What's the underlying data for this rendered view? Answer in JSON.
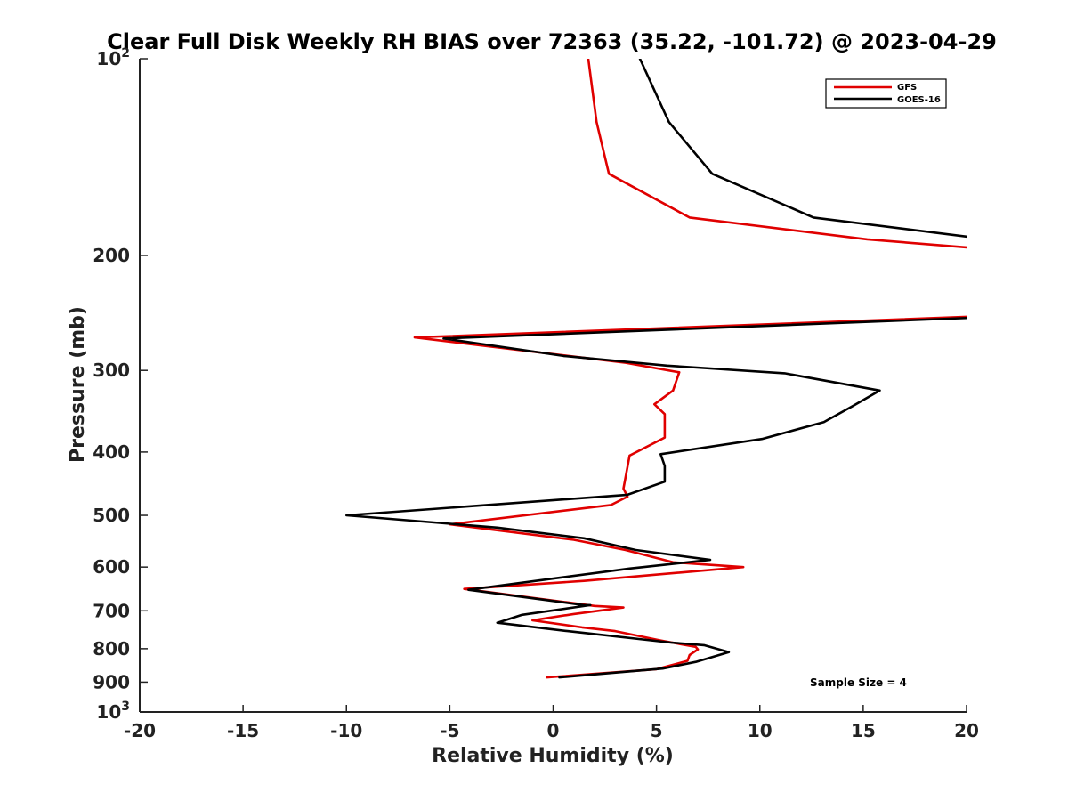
{
  "chart_data": {
    "type": "line",
    "title": "Clear Full Disk Weekly RH BIAS over 72363 (35.22, -101.72) @ 2023-04-29",
    "xlabel": "Relative Humidity (%)",
    "ylabel": "Pressure (mb)",
    "xlim": [
      -20,
      20
    ],
    "ylim": [
      100,
      1000
    ],
    "yscale": "log",
    "y_reversed": true,
    "x_ticks": [
      -20,
      -15,
      -10,
      -5,
      0,
      5,
      10,
      15,
      20
    ],
    "x_tick_labels": [
      "-20",
      "-15",
      "-10",
      "-5",
      "0",
      "5",
      "10",
      "15",
      "20"
    ],
    "y_ticks": [
      {
        "value": 100,
        "label": "10",
        "sup": "2"
      },
      {
        "value": 200,
        "label": "200",
        "sup": ""
      },
      {
        "value": 300,
        "label": "300",
        "sup": ""
      },
      {
        "value": 400,
        "label": "400",
        "sup": ""
      },
      {
        "value": 500,
        "label": "500",
        "sup": ""
      },
      {
        "value": 600,
        "label": "600",
        "sup": ""
      },
      {
        "value": 700,
        "label": "700",
        "sup": ""
      },
      {
        "value": 800,
        "label": "800",
        "sup": ""
      },
      {
        "value": 900,
        "label": "900",
        "sup": ""
      },
      {
        "value": 1000,
        "label": "10",
        "sup": "3"
      }
    ],
    "grid": false,
    "legend_position": "top-right",
    "series": [
      {
        "name": "GFS",
        "color": "#e00000",
        "points": [
          [
            1.7,
            100
          ],
          [
            2.1,
            125
          ],
          [
            2.7,
            150
          ],
          [
            6.6,
            175
          ],
          [
            15.2,
            189
          ],
          [
            20.5,
            195
          ],
          [
            20.5,
            248
          ],
          [
            -6.7,
            267
          ],
          [
            3.5,
            292
          ],
          [
            6.1,
            302
          ],
          [
            5.8,
            322
          ],
          [
            4.9,
            338
          ],
          [
            5.4,
            350
          ],
          [
            5.4,
            380
          ],
          [
            3.7,
            405
          ],
          [
            3.4,
            455
          ],
          [
            3.6,
            468
          ],
          [
            2.8,
            482
          ],
          [
            -5.0,
            516
          ],
          [
            1.0,
            545
          ],
          [
            3.5,
            565
          ],
          [
            5.8,
            590
          ],
          [
            9.2,
            600
          ],
          [
            1.5,
            630
          ],
          [
            -4.3,
            648
          ],
          [
            2.0,
            688
          ],
          [
            3.4,
            692
          ],
          [
            1.0,
            708
          ],
          [
            -1.0,
            724
          ],
          [
            1.4,
            742
          ],
          [
            3.0,
            752
          ],
          [
            5.2,
            777
          ],
          [
            6.9,
            795
          ],
          [
            7.0,
            802
          ],
          [
            6.6,
            818
          ],
          [
            6.5,
            835
          ],
          [
            5.0,
            860
          ],
          [
            -0.3,
            885
          ]
        ]
      },
      {
        "name": "GOES-16",
        "color": "#000000",
        "points": [
          [
            4.2,
            100
          ],
          [
            5.6,
            125
          ],
          [
            7.7,
            150
          ],
          [
            12.6,
            175
          ],
          [
            20.5,
            188
          ],
          [
            20.5,
            249
          ],
          [
            -5.3,
            268
          ],
          [
            0.5,
            285
          ],
          [
            5.5,
            295
          ],
          [
            11.2,
            303
          ],
          [
            15.8,
            322
          ],
          [
            14.5,
            340
          ],
          [
            13.1,
            360
          ],
          [
            10.1,
            382
          ],
          [
            5.2,
            403
          ],
          [
            5.4,
            420
          ],
          [
            5.4,
            444
          ],
          [
            3.6,
            465
          ],
          [
            -10.0,
            500
          ],
          [
            -2.7,
            522
          ],
          [
            1.5,
            542
          ],
          [
            4.0,
            565
          ],
          [
            7.6,
            585
          ],
          [
            3.7,
            603
          ],
          [
            0.5,
            622
          ],
          [
            -4.1,
            650
          ],
          [
            1.5,
            686
          ],
          [
            1.8,
            686
          ],
          [
            -1.5,
            710
          ],
          [
            -2.7,
            730
          ],
          [
            0.7,
            752
          ],
          [
            5.7,
            783
          ],
          [
            7.3,
            790
          ],
          [
            8.5,
            810
          ],
          [
            6.9,
            838
          ],
          [
            5.3,
            858
          ],
          [
            0.3,
            885
          ]
        ]
      }
    ],
    "annotations": [
      "Sample Size = 4"
    ]
  }
}
